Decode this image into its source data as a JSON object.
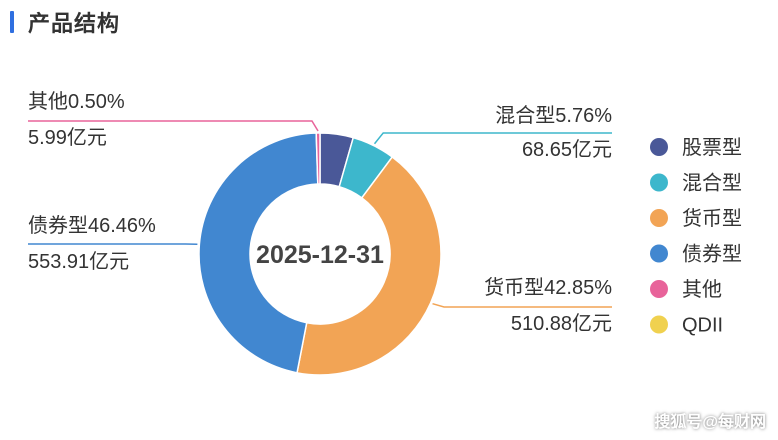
{
  "header": {
    "title": "产品结构"
  },
  "chart_data": {
    "type": "pie",
    "center_label": "2025-12-31",
    "legend_position": "right",
    "slices": [
      {
        "name": "股票型",
        "percent": 4.43,
        "color": "#4a5898"
      },
      {
        "name": "混合型",
        "percent": 5.76,
        "pct_label": "混合型5.76%",
        "amount_label": "68.65亿元",
        "color": "#3db7cc"
      },
      {
        "name": "货币型",
        "percent": 42.85,
        "pct_label": "货币型42.85%",
        "amount_label": "510.88亿元",
        "color": "#f2a455"
      },
      {
        "name": "债券型",
        "percent": 46.46,
        "pct_label": "债券型46.46%",
        "amount_label": "553.91亿元",
        "color": "#4187d0"
      },
      {
        "name": "其他",
        "percent": 0.5,
        "pct_label": "其他0.50%",
        "amount_label": "5.99亿元",
        "color": "#e8639a"
      },
      {
        "name": "QDII",
        "percent": 0.0,
        "color": "#f0d14f"
      }
    ]
  },
  "watermark": "搜狐号@每财网"
}
